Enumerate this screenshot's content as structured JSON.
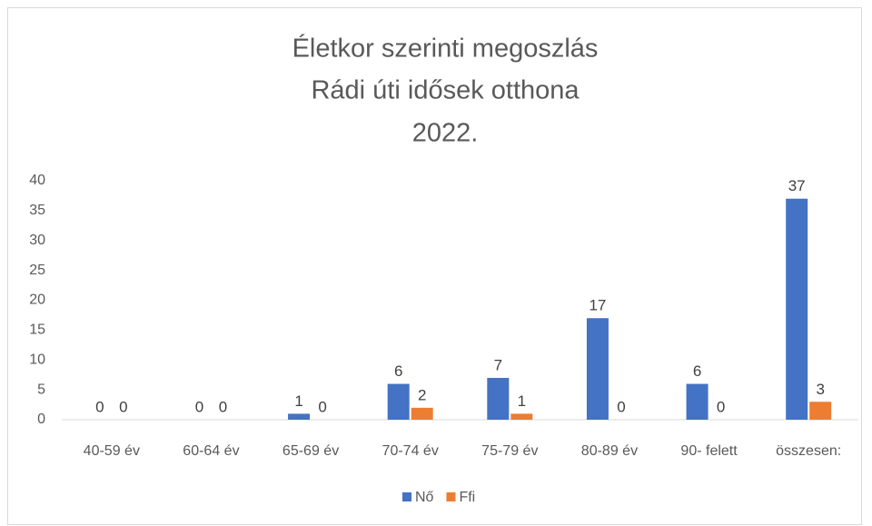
{
  "chart_data": {
    "type": "bar",
    "title": [
      "Életkor szerinti megoszlás",
      "Rádi úti idősek otthona",
      "2022."
    ],
    "categories": [
      "40-59 év",
      "60-64 év",
      "65-69 év",
      "70-74 év",
      "75-79 év",
      "80-89 év",
      "90- felett",
      "összesen:"
    ],
    "series": [
      {
        "name": "Nő",
        "color": "#4472c4",
        "values": [
          0,
          0,
          1,
          6,
          7,
          17,
          6,
          37
        ]
      },
      {
        "name": "Ffi",
        "color": "#ed7d31",
        "values": [
          0,
          0,
          0,
          2,
          1,
          0,
          0,
          3
        ]
      }
    ],
    "ylim": [
      0,
      40
    ],
    "yticks": [
      0,
      5,
      10,
      15,
      20,
      25,
      30,
      35,
      40
    ],
    "grid": false,
    "legend": "bottom"
  }
}
